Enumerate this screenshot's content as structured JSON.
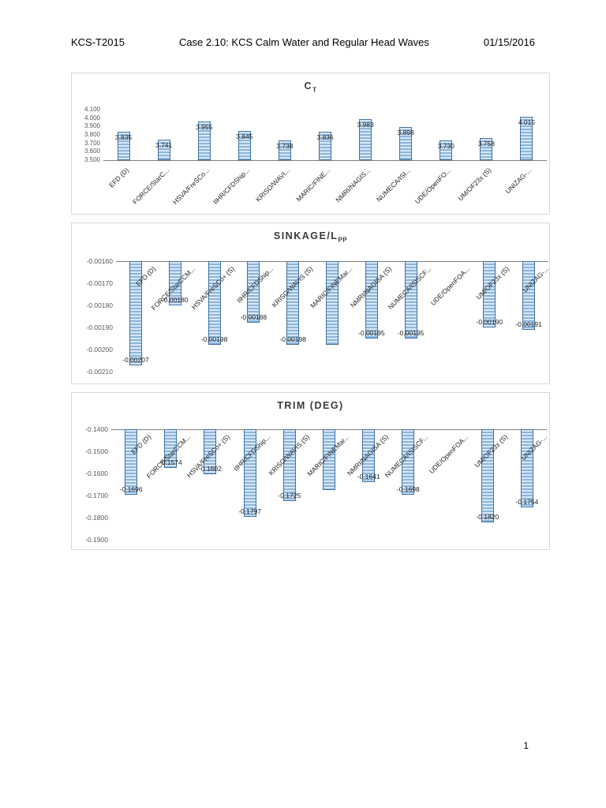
{
  "header": {
    "left": "KCS-T2015",
    "center": "Case 2.10:  KCS Calm Water and Regular Head Waves",
    "right": "01/15/2016"
  },
  "footer": {
    "page_number": "1"
  },
  "colors": {
    "bar_fill_light": "#d9e7f5",
    "bar_fill_stripe": "#8ab5dd",
    "bar_border": "#41719c",
    "axis_line": "#808080",
    "chart_border": "#d9d9d9",
    "tick_text": "#595959",
    "title_text": "#3a3a3a",
    "label_text": "#1f1f1f"
  },
  "chart_data": [
    {
      "type": "bar",
      "title_main": "C",
      "title_sub": "T",
      "orientation": "up",
      "legend": "none",
      "grid": "off",
      "categories": [
        "EFD (D)",
        "FORCE/StarC...",
        "HSVA/FreSCo...",
        "IIHR/CFDShip...",
        "KRISO/WAVI...",
        "MARIC/FINE...",
        "NMRI/NAGIS...",
        "NUMECA/ISI...",
        "UDE/OpenFO...",
        "UM/OF23x (S)",
        "UNIZAG-..."
      ],
      "values": [
        3.835,
        3.741,
        3.955,
        3.845,
        3.738,
        3.836,
        3.983,
        3.898,
        3.73,
        3.758,
        4.015
      ],
      "data_labels": [
        "3.835",
        "3.741",
        "3.955",
        "3.845",
        "3.738",
        "3.836",
        "3.983",
        "3.898",
        "3.730",
        "3.758",
        "4.015"
      ],
      "yticks": [
        "4.100",
        "4.000",
        "3.900",
        "3.800",
        "3.700",
        "3.600",
        "3.500"
      ],
      "ylim": [
        3.5,
        4.1
      ]
    },
    {
      "type": "bar",
      "title_main": "SINKAGE/L",
      "title_sub": "PP",
      "orientation": "down",
      "legend": "none",
      "grid": "off",
      "categories": [
        "EFD (D)",
        "FORCE/StarCCM...",
        "HSVA/FreSCo+ (S)",
        "IIHR/CFDShip...",
        "KRISO/WAVIS (S)",
        "MARIC/FINEMar...",
        "NMRI/NAGISA (S)",
        "NUMECA/ISISCF...",
        "UDE/OpenFOA...",
        "UM/OF23x (S)",
        "UNIZAG-..."
      ],
      "values": [
        -0.00207,
        -0.0018,
        -0.00198,
        -0.00188,
        -0.00198,
        -0.00198,
        -0.00195,
        -0.00195,
        null,
        -0.0019,
        -0.00191
      ],
      "data_labels": [
        "-0.00207",
        "-0.00180",
        "-0.00198",
        "-0.00188",
        "-0.00198",
        null,
        "-0.00195",
        "-0.00195",
        null,
        "-0.00190",
        "-0.00191"
      ],
      "yticks": [
        "-0.00160",
        "-0.00170",
        "-0.00180",
        "-0.00190",
        "-0.00200",
        "-0.00210"
      ],
      "ylim": [
        -0.0021,
        -0.0016
      ]
    },
    {
      "type": "bar",
      "title_main": "TRIM (DEG)",
      "title_sub": "",
      "orientation": "down",
      "legend": "none",
      "grid": "off",
      "categories": [
        "EFD (D)",
        "FORCE/StarCCM...",
        "HSVA/FreSCo+ (S)",
        "IIHR/CFDShip...",
        "KRISO/WAVIS (S)",
        "MARIC/FINEMar...",
        "NMRI/NAGISA (S)",
        "NUMECA/ISISCF...",
        "UDE/OpenFOA...",
        "UM/OF23x (S)",
        "UNIZAG-..."
      ],
      "values": [
        -0.1696,
        -0.1574,
        -0.1602,
        -0.1797,
        -0.1725,
        -0.1675,
        -0.1641,
        -0.1698,
        null,
        -0.182,
        -0.1754
      ],
      "data_labels": [
        "-0.1696",
        "-0.1574",
        "-0.1602",
        "-0.1797",
        "-0.1725",
        null,
        "-0.1641",
        "-0.1698",
        null,
        "-0.1820",
        "-0.1754"
      ],
      "yticks": [
        "-0.1400",
        "-0.1500",
        "-0.1600",
        "-0.1700",
        "-0.1800",
        "-0.1900"
      ],
      "ylim": [
        -0.19,
        -0.14
      ]
    }
  ]
}
